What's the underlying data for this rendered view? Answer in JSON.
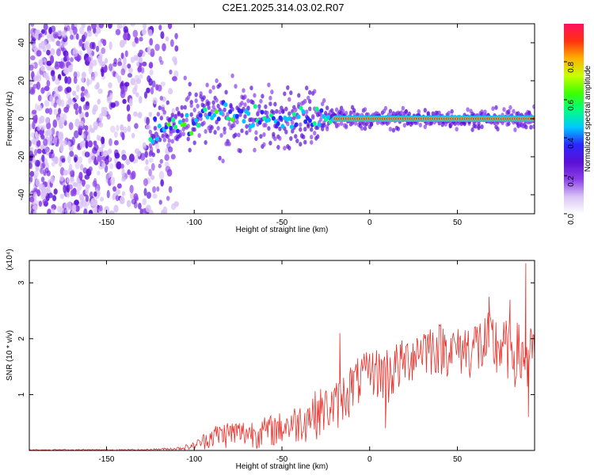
{
  "title": "C2E1.2025.314.03.02.R07",
  "chart_data": [
    {
      "type": "heatmap",
      "title": "C2E1.2025.314.03.02.R07",
      "xlabel": "Height of straight line (km)",
      "ylabel": "Frequency (Hz)",
      "xlim": [
        -194,
        94
      ],
      "ylim": [
        -50,
        50
      ],
      "x_ticks": [
        -150,
        -100,
        -50,
        0,
        50
      ],
      "y_ticks": [
        -40,
        -20,
        0,
        20,
        40
      ],
      "colorbar": {
        "label": "Normalized spectral amplitude",
        "range": [
          0,
          1
        ],
        "ticks": [
          0.0,
          0.2,
          0.4,
          0.6,
          0.8
        ],
        "colors": [
          "#ffffff",
          "#d9c3f5",
          "#8a3ee8",
          "#5a10d6",
          "#2a28ff",
          "#00c8ff",
          "#00ff80",
          "#40ff00",
          "#c8ff00",
          "#ffb000",
          "#ff3010",
          "#ff1060"
        ]
      },
      "ridge": [
        {
          "x": -125,
          "y": -9,
          "spread": 4
        },
        {
          "x": -118,
          "y": -5,
          "spread": 5
        },
        {
          "x": -105,
          "y": -3,
          "spread": 5
        },
        {
          "x": -90,
          "y": 2,
          "spread": 6
        },
        {
          "x": -75,
          "y": 2,
          "spread": 6
        },
        {
          "x": -60,
          "y": -1,
          "spread": 5
        },
        {
          "x": -45,
          "y": 0,
          "spread": 5
        },
        {
          "x": -30,
          "y": 1,
          "spread": 5
        },
        {
          "x": -20,
          "y": 0,
          "spread": 2
        },
        {
          "x": 0,
          "y": 0,
          "spread": 1.5
        },
        {
          "x": 50,
          "y": 0,
          "spread": 1.5
        },
        {
          "x": 94,
          "y": 0,
          "spread": 1.5
        }
      ],
      "noise_region_x": [
        -194,
        -110
      ]
    },
    {
      "type": "line",
      "xlabel": "Height of straight line (km)",
      "ylabel": "SNR (10 * v/v)",
      "y_multiplier": "(x10⁴)",
      "xlim": [
        -194,
        94
      ],
      "ylim": [
        0,
        3.4
      ],
      "x_ticks": [
        -150,
        -100,
        -50,
        0,
        50
      ],
      "y_ticks": [
        1,
        2,
        3
      ],
      "color": "#e8302a",
      "envelope": [
        {
          "x": -194,
          "lo": 0.0,
          "hi": 0.02
        },
        {
          "x": -130,
          "lo": 0.0,
          "hi": 0.02
        },
        {
          "x": -110,
          "lo": 0.0,
          "hi": 0.06
        },
        {
          "x": -100,
          "lo": 0.0,
          "hi": 0.15
        },
        {
          "x": -90,
          "lo": 0.02,
          "hi": 0.45
        },
        {
          "x": -80,
          "lo": 0.02,
          "hi": 0.55
        },
        {
          "x": -70,
          "lo": 0.02,
          "hi": 0.55
        },
        {
          "x": -60,
          "lo": 0.03,
          "hi": 0.6
        },
        {
          "x": -50,
          "lo": 0.05,
          "hi": 0.7
        },
        {
          "x": -40,
          "lo": 0.1,
          "hi": 0.85
        },
        {
          "x": -30,
          "lo": 0.2,
          "hi": 1.1
        },
        {
          "x": -20,
          "lo": 0.3,
          "hi": 1.2
        },
        {
          "x": -10,
          "lo": 0.6,
          "hi": 1.6
        },
        {
          "x": 0,
          "lo": 1.0,
          "hi": 1.8
        },
        {
          "x": 10,
          "lo": 0.7,
          "hi": 1.9
        },
        {
          "x": 20,
          "lo": 1.1,
          "hi": 2.0
        },
        {
          "x": 30,
          "lo": 1.3,
          "hi": 2.3
        },
        {
          "x": 40,
          "lo": 1.3,
          "hi": 2.3
        },
        {
          "x": 50,
          "lo": 1.3,
          "hi": 2.2
        },
        {
          "x": 60,
          "lo": 1.2,
          "hi": 2.4
        },
        {
          "x": 70,
          "lo": 1.1,
          "hi": 2.5
        },
        {
          "x": 80,
          "lo": 1.2,
          "hi": 2.3
        },
        {
          "x": 90,
          "lo": 0.8,
          "hi": 2.3
        },
        {
          "x": 94,
          "lo": 1.4,
          "hi": 2.1
        }
      ],
      "spikes": [
        {
          "x": -17,
          "y": 2.1
        },
        {
          "x": 68,
          "y": 2.75
        },
        {
          "x": 80,
          "y": 2.7
        },
        {
          "x": 89,
          "y": 3.35
        },
        {
          "x": 90.5,
          "y": 0.6
        },
        {
          "x": 9,
          "y": 0.4
        }
      ]
    }
  ]
}
